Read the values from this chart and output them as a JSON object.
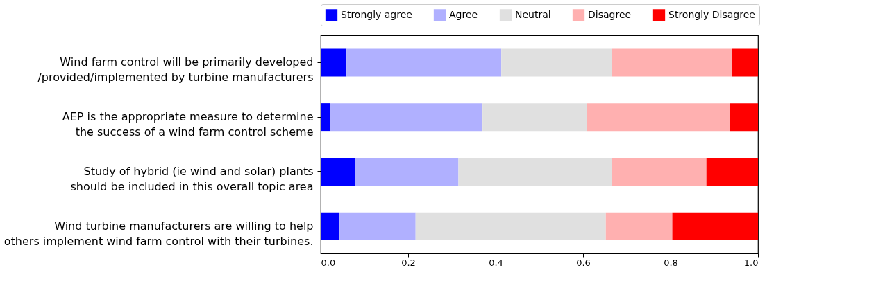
{
  "chart_data": {
    "type": "bar",
    "orientation": "horizontal",
    "stacked": true,
    "categories": [
      "Wind farm control will be primarily developed\n/provided/implemented by turbine manufacturers",
      "AEP is the appropriate measure to determine\nthe success of a wind farm control scheme",
      "Study of hybrid (ie wind and solar) plants\nshould be included in this overall topic area",
      "Wind turbine manufacturers are willing to help\nothers implement wind farm control with their turbines."
    ],
    "series": [
      {
        "name": "Strongly agree",
        "color": "#0000ff",
        "values": [
          0.059,
          0.022,
          0.079,
          0.043
        ]
      },
      {
        "name": "Agree",
        "color": "#b0b0ff",
        "values": [
          0.354,
          0.348,
          0.236,
          0.174
        ]
      },
      {
        "name": "Neutral",
        "color": "#e0e0e0",
        "values": [
          0.253,
          0.239,
          0.351,
          0.435
        ]
      },
      {
        "name": "Disagree",
        "color": "#ffb0b0",
        "values": [
          0.275,
          0.326,
          0.216,
          0.152
        ]
      },
      {
        "name": "Strongly Disagree",
        "color": "#ff0000",
        "values": [
          0.059,
          0.065,
          0.118,
          0.196
        ]
      }
    ],
    "xlim": [
      0,
      1
    ],
    "xticks": [
      {
        "value": 0,
        "label": "0.0"
      },
      0.2,
      0.4,
      0.6,
      0.8,
      {
        "value": 1,
        "label": "1.0"
      }
    ],
    "grid": false,
    "legend": "top"
  }
}
